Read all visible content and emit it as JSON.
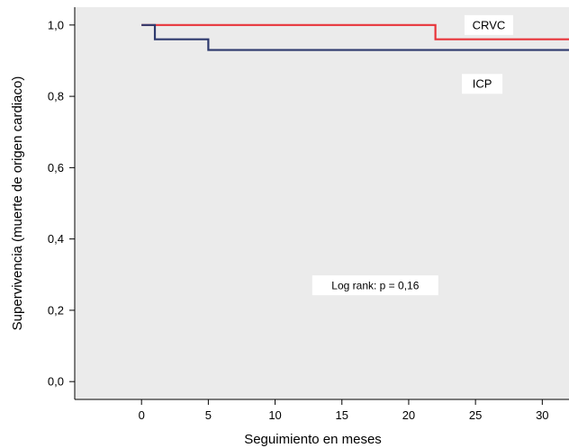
{
  "chart_data": {
    "type": "line",
    "subtype": "step",
    "title": "",
    "xlabel": "Seguimiento en meses",
    "ylabel": "Supervivencia (muerte de origen cardiaco)",
    "xlim": [
      -5,
      32
    ],
    "ylim": [
      -0.05,
      1.05
    ],
    "xticks": [
      0,
      5,
      10,
      15,
      20,
      25,
      30
    ],
    "yticks": [
      0.0,
      0.2,
      0.4,
      0.6,
      0.8,
      1.0
    ],
    "xtick_labels": [
      "0",
      "5",
      "10",
      "15",
      "20",
      "25",
      "30"
    ],
    "ytick_labels": [
      "0,0",
      "0,2",
      "0,4",
      "0,6",
      "0,8",
      "1,0"
    ],
    "grid": false,
    "plot_background": "#ebebeb",
    "series": [
      {
        "name": "CRVC",
        "color": "#e8343a",
        "x": [
          0,
          22,
          32
        ],
        "y": [
          1.0,
          0.96,
          0.96
        ]
      },
      {
        "name": "ICP",
        "color": "#2e3a6e",
        "x": [
          0,
          1,
          5,
          32
        ],
        "y": [
          1.0,
          0.96,
          0.93,
          0.93
        ]
      }
    ],
    "series_labels": [
      {
        "text": "CRVC",
        "x": 26,
        "y": 1.0
      },
      {
        "text": "ICP",
        "x": 25.5,
        "y": 0.835
      }
    ],
    "annotations": [
      {
        "text": "Log rank: p = 0,16",
        "x": 17.5,
        "y": 0.27
      }
    ]
  }
}
